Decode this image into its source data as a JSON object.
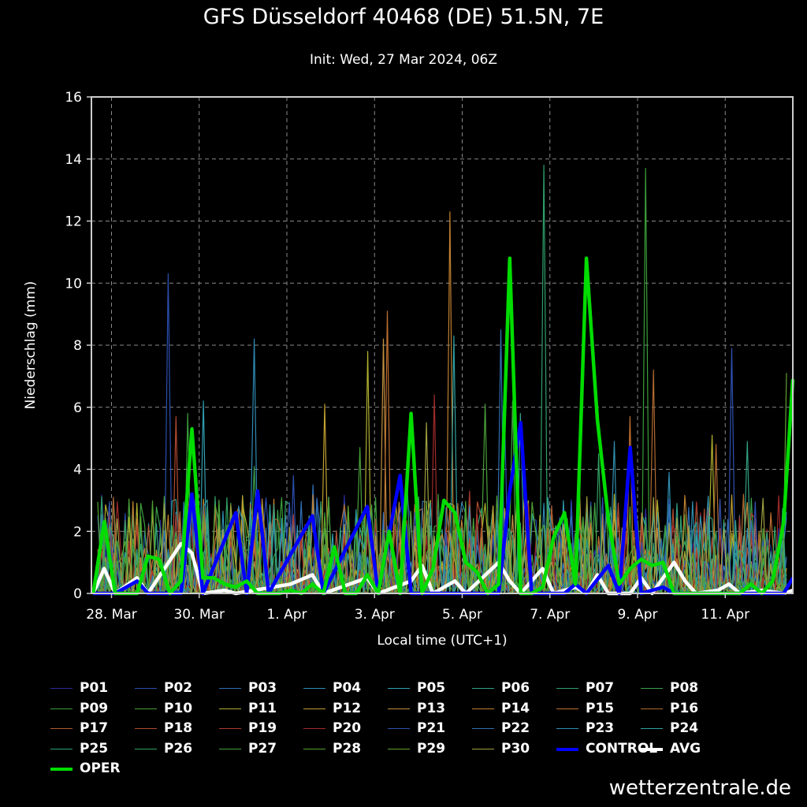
{
  "chart_data": {
    "type": "line",
    "title": "GFS Düsseldorf 40468 (DE) 51.5N, 7E",
    "subtitle": "Init: Wed, 27 Mar 2024, 06Z",
    "xlabel": "Local time (UTC+1)",
    "ylabel": "Niederschlag (mm)",
    "ylim": [
      0,
      16
    ],
    "yticks": [
      0,
      2,
      4,
      6,
      8,
      10,
      12,
      14,
      16
    ],
    "xlim": [
      "2024-03-27T13:00",
      "2024-04-12T13:00"
    ],
    "xticks": [
      {
        "label": "28. Mar",
        "date": "2024-03-28"
      },
      {
        "label": "30. Mar",
        "date": "2024-03-30"
      },
      {
        "label": "1. Apr",
        "date": "2024-04-01"
      },
      {
        "label": "3. Apr",
        "date": "2024-04-03"
      },
      {
        "label": "5. Apr",
        "date": "2024-04-05"
      },
      {
        "label": "7. Apr",
        "date": "2024-04-07"
      },
      {
        "label": "9. Apr",
        "date": "2024-04-09"
      },
      {
        "label": "11. Apr",
        "date": "2024-04-11"
      }
    ],
    "grid": true,
    "legend_position": "bottom",
    "colors": {
      "background": "#000000",
      "axes": "#cccccc",
      "grid": "#888888",
      "control": "#0000ff",
      "avg": "#ffffff",
      "oper": "#00dd00"
    },
    "series": [
      {
        "name": "OPER",
        "color": "#00dd00",
        "points": [
          [
            "2024-03-27T14:00",
            0
          ],
          [
            "2024-03-27T20:00",
            2.3
          ],
          [
            "2024-03-28T02:00",
            0
          ],
          [
            "2024-03-28T08:00",
            0
          ],
          [
            "2024-03-28T14:00",
            0
          ],
          [
            "2024-03-28T20:00",
            1.2
          ],
          [
            "2024-03-29T02:00",
            1.1
          ],
          [
            "2024-03-29T08:00",
            0
          ],
          [
            "2024-03-29T14:00",
            0.4
          ],
          [
            "2024-03-29T20:00",
            5.3
          ],
          [
            "2024-03-30T02:00",
            0.5
          ],
          [
            "2024-03-30T08:00",
            0.5
          ],
          [
            "2024-03-30T14:00",
            0.3
          ],
          [
            "2024-03-30T20:00",
            0.2
          ],
          [
            "2024-03-31T02:00",
            0.4
          ],
          [
            "2024-03-31T08:00",
            0
          ],
          [
            "2024-03-31T14:00",
            0
          ],
          [
            "2024-03-31T20:00",
            0
          ],
          [
            "2024-04-01T02:00",
            0.1
          ],
          [
            "2024-04-01T08:00",
            0
          ],
          [
            "2024-04-01T14:00",
            0.3
          ],
          [
            "2024-04-01T20:00",
            0
          ],
          [
            "2024-04-02T02:00",
            1.5
          ],
          [
            "2024-04-02T08:00",
            0
          ],
          [
            "2024-04-02T14:00",
            0
          ],
          [
            "2024-04-02T20:00",
            0.6
          ],
          [
            "2024-04-03T02:00",
            0
          ],
          [
            "2024-04-03T08:00",
            2.0
          ],
          [
            "2024-04-03T14:00",
            0
          ],
          [
            "2024-04-03T20:00",
            5.8
          ],
          [
            "2024-04-04T02:00",
            0
          ],
          [
            "2024-04-04T08:00",
            0.8
          ],
          [
            "2024-04-04T14:00",
            3.0
          ],
          [
            "2024-04-04T20:00",
            2.6
          ],
          [
            "2024-04-05T02:00",
            1.0
          ],
          [
            "2024-04-05T08:00",
            0.7
          ],
          [
            "2024-04-05T14:00",
            0
          ],
          [
            "2024-04-05T20:00",
            0.3
          ],
          [
            "2024-04-06T02:00",
            10.8
          ],
          [
            "2024-04-06T08:00",
            0
          ],
          [
            "2024-04-06T14:00",
            0
          ],
          [
            "2024-04-06T20:00",
            0.2
          ],
          [
            "2024-04-07T02:00",
            1.8
          ],
          [
            "2024-04-07T08:00",
            2.6
          ],
          [
            "2024-04-07T14:00",
            0.3
          ],
          [
            "2024-04-07T20:00",
            10.8
          ],
          [
            "2024-04-08T02:00",
            5.6
          ],
          [
            "2024-04-08T08:00",
            2.4
          ],
          [
            "2024-04-08T14:00",
            0.3
          ],
          [
            "2024-04-08T20:00",
            0.8
          ],
          [
            "2024-04-09T02:00",
            1.1
          ],
          [
            "2024-04-09T08:00",
            0.9
          ],
          [
            "2024-04-09T14:00",
            1.0
          ],
          [
            "2024-04-09T20:00",
            0
          ],
          [
            "2024-04-10T02:00",
            0
          ],
          [
            "2024-04-10T08:00",
            0
          ],
          [
            "2024-04-10T14:00",
            0
          ],
          [
            "2024-04-10T20:00",
            0
          ],
          [
            "2024-04-11T02:00",
            0
          ],
          [
            "2024-04-11T08:00",
            0
          ],
          [
            "2024-04-11T14:00",
            0.3
          ],
          [
            "2024-04-11T20:00",
            0
          ],
          [
            "2024-04-12T02:00",
            0.4
          ],
          [
            "2024-04-12T08:00",
            2.3
          ],
          [
            "2024-04-12T13:00",
            6.9
          ]
        ]
      },
      {
        "name": "CONTROL",
        "color": "#0000ff",
        "points": [
          [
            "2024-03-27T14:00",
            0
          ],
          [
            "2024-03-28T02:00",
            0
          ],
          [
            "2024-03-28T14:00",
            0.4
          ],
          [
            "2024-03-28T20:00",
            0
          ],
          [
            "2024-03-29T14:00",
            0
          ],
          [
            "2024-03-29T20:00",
            3.2
          ],
          [
            "2024-03-30T02:00",
            0
          ],
          [
            "2024-03-30T20:00",
            2.6
          ],
          [
            "2024-03-31T02:00",
            0
          ],
          [
            "2024-03-31T08:00",
            3.3
          ],
          [
            "2024-03-31T14:00",
            0
          ],
          [
            "2024-04-01T14:00",
            2.5
          ],
          [
            "2024-04-01T20:00",
            0
          ],
          [
            "2024-04-02T20:00",
            2.8
          ],
          [
            "2024-04-03T02:00",
            0
          ],
          [
            "2024-04-03T14:00",
            3.8
          ],
          [
            "2024-04-03T20:00",
            0
          ],
          [
            "2024-04-05T20:00",
            0
          ],
          [
            "2024-04-06T02:00",
            3.3
          ],
          [
            "2024-04-06T08:00",
            5.5
          ],
          [
            "2024-04-06T14:00",
            0
          ],
          [
            "2024-04-07T08:00",
            0
          ],
          [
            "2024-04-07T14:00",
            0.3
          ],
          [
            "2024-04-07T20:00",
            0
          ],
          [
            "2024-04-08T08:00",
            0.9
          ],
          [
            "2024-04-08T14:00",
            0
          ],
          [
            "2024-04-08T20:00",
            4.7
          ],
          [
            "2024-04-09T02:00",
            0
          ],
          [
            "2024-04-09T14:00",
            0.2
          ],
          [
            "2024-04-09T20:00",
            0
          ],
          [
            "2024-04-12T08:00",
            0
          ],
          [
            "2024-04-12T13:00",
            0.5
          ]
        ]
      },
      {
        "name": "AVG",
        "color": "#ffffff",
        "points": [
          [
            "2024-03-27T14:00",
            0
          ],
          [
            "2024-03-27T20:00",
            0.8
          ],
          [
            "2024-03-28T02:00",
            0
          ],
          [
            "2024-03-28T14:00",
            0.5
          ],
          [
            "2024-03-28T20:00",
            0
          ],
          [
            "2024-03-29T14:00",
            1.6
          ],
          [
            "2024-03-29T20:00",
            1.3
          ],
          [
            "2024-03-30T02:00",
            0
          ],
          [
            "2024-03-30T14:00",
            0.1
          ],
          [
            "2024-03-30T20:00",
            0
          ],
          [
            "2024-04-01T02:00",
            0.3
          ],
          [
            "2024-04-01T14:00",
            0.6
          ],
          [
            "2024-04-01T20:00",
            0
          ],
          [
            "2024-04-02T20:00",
            0.5
          ],
          [
            "2024-04-03T02:00",
            0
          ],
          [
            "2024-04-03T20:00",
            0.4
          ],
          [
            "2024-04-04T02:00",
            0.9
          ],
          [
            "2024-04-04T08:00",
            0
          ],
          [
            "2024-04-04T20:00",
            0.4
          ],
          [
            "2024-04-05T02:00",
            0
          ],
          [
            "2024-04-05T20:00",
            1.0
          ],
          [
            "2024-04-06T02:00",
            0.4
          ],
          [
            "2024-04-06T08:00",
            0
          ],
          [
            "2024-04-06T20:00",
            0.8
          ],
          [
            "2024-04-07T02:00",
            0
          ],
          [
            "2024-04-07T14:00",
            0.2
          ],
          [
            "2024-04-07T20:00",
            0
          ],
          [
            "2024-04-08T02:00",
            0.6
          ],
          [
            "2024-04-08T08:00",
            0
          ],
          [
            "2024-04-08T20:00",
            0
          ],
          [
            "2024-04-09T02:00",
            0.5
          ],
          [
            "2024-04-09T08:00",
            0
          ],
          [
            "2024-04-09T20:00",
            1.0
          ],
          [
            "2024-04-10T02:00",
            0.4
          ],
          [
            "2024-04-10T08:00",
            0
          ],
          [
            "2024-04-10T20:00",
            0.1
          ],
          [
            "2024-04-11T02:00",
            0.3
          ],
          [
            "2024-04-11T08:00",
            0
          ],
          [
            "2024-04-11T20:00",
            0.1
          ],
          [
            "2024-04-12T08:00",
            0
          ],
          [
            "2024-04-12T13:00",
            0.1
          ]
        ]
      }
    ],
    "members": [
      {
        "name": "P01",
        "color": "#2b2b9e"
      },
      {
        "name": "P02",
        "color": "#2b4fb0"
      },
      {
        "name": "P03",
        "color": "#2f6fb5"
      },
      {
        "name": "P04",
        "color": "#2f8ab5"
      },
      {
        "name": "P05",
        "color": "#2fa0b0"
      },
      {
        "name": "P06",
        "color": "#2fa08a"
      },
      {
        "name": "P07",
        "color": "#2fa06a"
      },
      {
        "name": "P08",
        "color": "#3aa04a"
      },
      {
        "name": "P09",
        "color": "#3a9e3a"
      },
      {
        "name": "P10",
        "color": "#4aa03a"
      },
      {
        "name": "P11",
        "color": "#b0b030"
      },
      {
        "name": "P12",
        "color": "#c0a030"
      },
      {
        "name": "P13",
        "color": "#c09040"
      },
      {
        "name": "P14",
        "color": "#c08030"
      },
      {
        "name": "P15",
        "color": "#c07030"
      },
      {
        "name": "P16",
        "color": "#b06a30"
      },
      {
        "name": "P17",
        "color": "#b05a30"
      },
      {
        "name": "P18",
        "color": "#b04a30"
      },
      {
        "name": "P19",
        "color": "#a83a30"
      },
      {
        "name": "P20",
        "color": "#a02a2a"
      },
      {
        "name": "P21",
        "color": "#3050b0"
      },
      {
        "name": "P22",
        "color": "#3070b0"
      },
      {
        "name": "P23",
        "color": "#3090b0"
      },
      {
        "name": "P24",
        "color": "#30a0a0"
      },
      {
        "name": "P25",
        "color": "#30a080"
      },
      {
        "name": "P26",
        "color": "#30a060"
      },
      {
        "name": "P27",
        "color": "#40a040"
      },
      {
        "name": "P28",
        "color": "#50a030"
      },
      {
        "name": "P29",
        "color": "#60a030"
      },
      {
        "name": "P30",
        "color": "#a0a040"
      }
    ]
  },
  "source": "wetterzentrale.de"
}
